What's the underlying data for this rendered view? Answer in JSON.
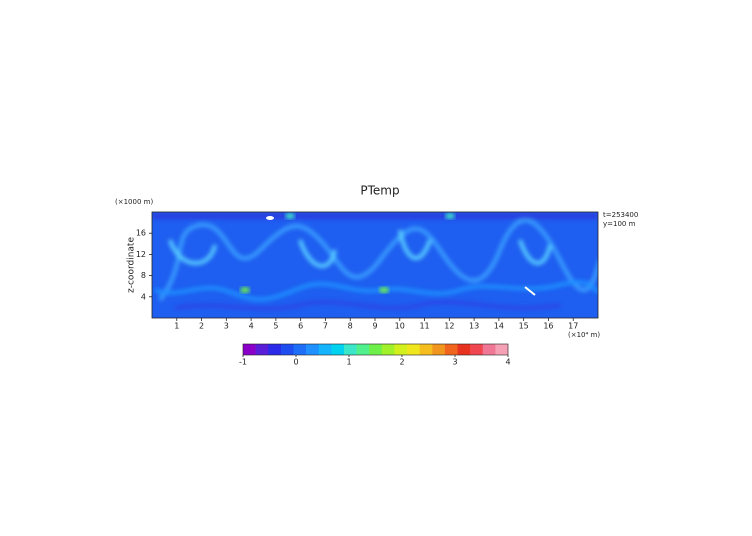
{
  "chart_data": {
    "type": "heatmap",
    "title": "PTemp",
    "xlabel": "(×10⁴ m)",
    "ylabel": "z-coordinate",
    "yunit": "(×1000 m)",
    "annotations": [
      "t=253400",
      "y=100 m"
    ],
    "xlim": [
      0,
      18
    ],
    "xticks": [
      1,
      2,
      3,
      4,
      5,
      6,
      7,
      8,
      9,
      10,
      11,
      12,
      13,
      14,
      15,
      16,
      17
    ],
    "ylim": [
      0,
      20
    ],
    "yticks": [
      4,
      8,
      12,
      16
    ],
    "colorbar": {
      "lim": [
        -1,
        4
      ],
      "ticks": [
        -1,
        0,
        1,
        2,
        3,
        4
      ],
      "colors": [
        "#8a00c8",
        "#5a1ed8",
        "#2a2ae8",
        "#1f4ef0",
        "#1e6ef8",
        "#1e90ff",
        "#14b4ff",
        "#00d2f0",
        "#3ce6c8",
        "#50f08c",
        "#6ef04a",
        "#a0f02a",
        "#d2f01e",
        "#f0e61e",
        "#f5be1e",
        "#f0961e",
        "#f0641e",
        "#e6321e",
        "#f04650",
        "#f07896",
        "#f5a0b4"
      ]
    }
  }
}
